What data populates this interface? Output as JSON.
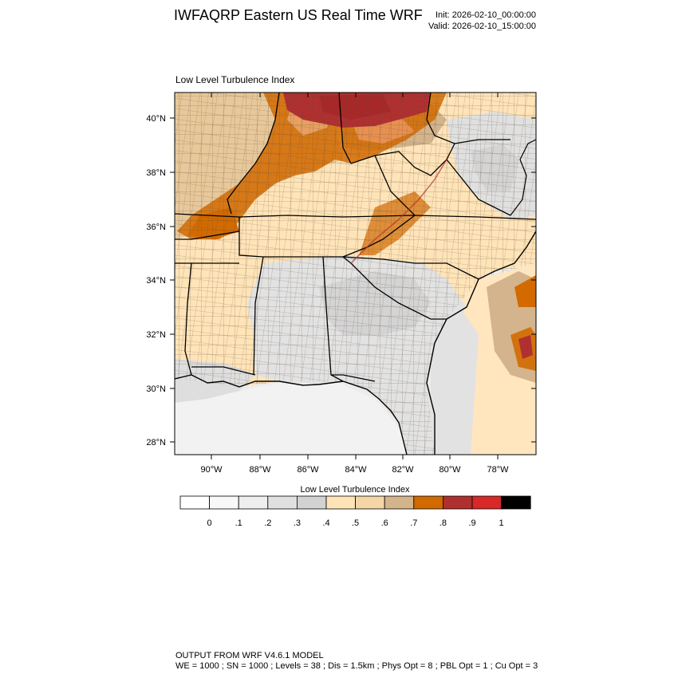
{
  "header": {
    "title": "IWFAQRP Eastern US Real Time WRF",
    "init": "Init: 2026-02-10_00:00:00",
    "valid": "Valid: 2026-02-10_15:00:00"
  },
  "plot": {
    "subtitle": "Low Level Turbulence Index",
    "lat_labels": [
      "40°N",
      "38°N",
      "36°N",
      "34°N",
      "32°N",
      "30°N",
      "28°N"
    ],
    "lon_labels": [
      "90°W",
      "88°W",
      "86°W",
      "84°W",
      "82°W",
      "80°W",
      "78°W"
    ]
  },
  "colorbar": {
    "title": "Low Level Turbulence Index",
    "labels": [
      "0",
      ".1",
      ".2",
      ".3",
      ".4",
      ".5",
      ".6",
      ".7",
      ".8",
      ".9",
      "1"
    ],
    "colors": [
      "#ffffff",
      "#f8f8f8",
      "#eeeeee",
      "#e0e0e0",
      "#d2d2d2",
      "#ffe4b8",
      "#f3d5a6",
      "#d4b48c",
      "#d26a00",
      "#b03030",
      "#d82828",
      "#000000"
    ]
  },
  "legend_colors": {
    "land_low": "#ffe4b8",
    "water": "#e8e8e8",
    "high": "#d26a00",
    "peak": "#b03030"
  },
  "footer": {
    "line1": "OUTPUT FROM WRF V4.6.1 MODEL",
    "line2": "WE = 1000 ; SN = 1000 ; Levels = 38 ; Dis = 1.5km ; Phys Opt = 8 ; PBL Opt = 1 ; Cu Opt = 3"
  }
}
